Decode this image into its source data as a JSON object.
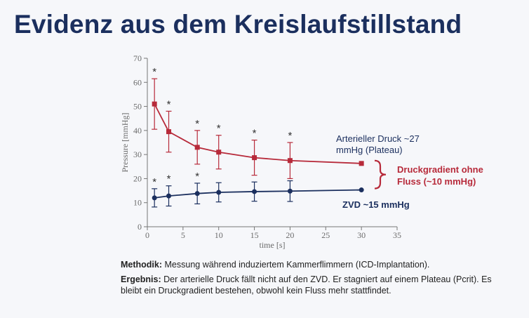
{
  "title": "Evidenz aus dem Kreislaufstillstand",
  "colors": {
    "title": "#1b2f5e",
    "arterial": "#b72a3a",
    "zvd": "#1b2f5e",
    "axis": "#777777"
  },
  "chart_data": {
    "type": "line",
    "xlabel": "time [s]",
    "ylabel": "Pressure [mmHg]",
    "xlim": [
      0,
      35
    ],
    "ylim": [
      0,
      70
    ],
    "xticks": [
      0,
      5,
      10,
      15,
      20,
      25,
      30,
      35
    ],
    "yticks": [
      0,
      10,
      20,
      30,
      40,
      50,
      60,
      70
    ],
    "grid": false,
    "series": [
      {
        "key": "arterial",
        "x": [
          1,
          3,
          7,
          10,
          15,
          20,
          30
        ],
        "y": [
          51,
          39.5,
          33,
          31,
          28.7,
          27.5,
          26.3
        ],
        "err": [
          10.5,
          8.5,
          7,
          7,
          7.3,
          7.5,
          0
        ],
        "marker": "square",
        "significant": [
          true,
          true,
          true,
          true,
          true,
          true,
          false
        ]
      },
      {
        "key": "zvd",
        "x": [
          1,
          3,
          7,
          10,
          15,
          20,
          30
        ],
        "y": [
          12,
          12.8,
          13.8,
          14.3,
          14.6,
          14.8,
          15.3
        ],
        "err": [
          3.8,
          4.2,
          4.3,
          4,
          4,
          4.3,
          0
        ],
        "marker": "circle",
        "significant": [
          true,
          true,
          true,
          false,
          false,
          false,
          false
        ]
      }
    ],
    "significance_symbol": "*",
    "annotations": {
      "arterial_line1": "Arterieller Druck ~27",
      "arterial_line2": "mmHg (Plateau)",
      "gradient_line1": "Druckgradient ohne",
      "gradient_line2": "Fluss (~10 mmHg)",
      "zvd": "ZVD ~15 mmHg"
    }
  },
  "notes": {
    "method_label": "Methodik:",
    "method_text": " Messung während induziertem Kammerflimmern (ICD-Implantation).",
    "result_label": "Ergebnis:",
    "result_text": " Der arterielle Druck fällt nicht auf den ZVD. Er stagniert auf einem Plateau (Pcrit). Es bleibt ein Druckgradient bestehen, obwohl kein Fluss mehr stattfindet."
  }
}
